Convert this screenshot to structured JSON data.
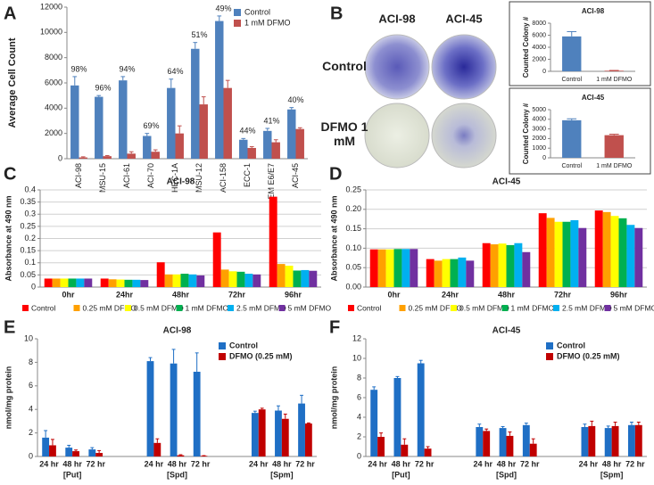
{
  "photo_panel": {
    "panel": "B",
    "columns": [
      "ACI-98",
      "ACI-45"
    ],
    "rows": [
      "Control",
      "DFMO 1 mM"
    ]
  },
  "chart_data": [
    {
      "type": "bar",
      "panel": "A",
      "ylabel": "Average Cell Count",
      "categories": [
        "ACI-98",
        "MSU-15",
        "ACI-61",
        "ACI-70",
        "HEC-1A",
        "MSU-12",
        "ACI-158",
        "ECC-1",
        "EM E6/E7",
        "ACI-45"
      ],
      "series": [
        {
          "name": "Control",
          "color": "#4f81bd",
          "values": [
            5800,
            4900,
            6200,
            1800,
            5600,
            8700,
            10900,
            1500,
            2200,
            3900
          ],
          "errors": [
            700,
            100,
            300,
            200,
            700,
            500,
            400,
            100,
            200,
            150
          ]
        },
        {
          "name": "1 mM DFMO",
          "color": "#c0504d",
          "values": [
            100,
            200,
            400,
            550,
            2000,
            4300,
            5600,
            850,
            1300,
            2350
          ],
          "errors": [
            50,
            50,
            150,
            150,
            600,
            600,
            600,
            100,
            200,
            100
          ]
        }
      ],
      "annotations": [
        "98%",
        "96%",
        "94%",
        "69%",
        "64%",
        "51%",
        "49%",
        "44%",
        "41%",
        "40%"
      ],
      "ylim": [
        0,
        12000
      ],
      "yticks": [
        0,
        2000,
        4000,
        6000,
        8000,
        10000,
        12000
      ],
      "legend": "upper right",
      "grid": false
    },
    {
      "type": "bar",
      "title": "ACI-98",
      "ylabel": "Counted Colony #",
      "categories": [
        "Control",
        "1 mM DFMO"
      ],
      "values": [
        5800,
        100
      ],
      "errors": [
        800,
        50
      ],
      "colors": [
        "#4f81bd",
        "#c0504d"
      ],
      "ylim": [
        0,
        8000
      ],
      "yticks": [
        0,
        2000,
        4000,
        6000,
        8000
      ],
      "grid": false
    },
    {
      "type": "bar",
      "title": "ACI-45",
      "ylabel": "Counted Colony #",
      "categories": [
        "Control",
        "1 mM DFMO"
      ],
      "values": [
        3900,
        2350
      ],
      "errors": [
        150,
        100
      ],
      "colors": [
        "#4f81bd",
        "#c0504d"
      ],
      "ylim": [
        0,
        5000
      ],
      "yticks": [
        0,
        1000,
        2000,
        3000,
        4000,
        5000
      ],
      "grid": false
    },
    {
      "type": "bar",
      "panel": "C",
      "title": "ACI-98",
      "ylabel": "Absorbance at 490 nm",
      "categories": [
        "0hr",
        "24hr",
        "48hr",
        "72hr",
        "96hr"
      ],
      "series": [
        {
          "name": "Control",
          "color": "#ff0000",
          "values": [
            0.035,
            0.035,
            0.102,
            0.225,
            0.372
          ]
        },
        {
          "name": "0.25 mM DFMO",
          "color": "#ffa000",
          "values": [
            0.035,
            0.032,
            0.052,
            0.072,
            0.095
          ]
        },
        {
          "name": "0.5 mM DFMO",
          "color": "#ffff00",
          "values": [
            0.035,
            0.031,
            0.052,
            0.065,
            0.088
          ]
        },
        {
          "name": "1 mM DFMO",
          "color": "#00b050",
          "values": [
            0.035,
            0.03,
            0.055,
            0.063,
            0.068
          ]
        },
        {
          "name": "2.5 mM DFMO",
          "color": "#00b0f0",
          "values": [
            0.035,
            0.03,
            0.052,
            0.055,
            0.07
          ]
        },
        {
          "name": "5 mM DFMO",
          "color": "#7030a0",
          "values": [
            0.035,
            0.029,
            0.048,
            0.052,
            0.067
          ]
        }
      ],
      "ylim": [
        0,
        0.4
      ],
      "yticks": [
        0,
        0.05,
        0.1,
        0.15,
        0.2,
        0.25,
        0.3,
        0.35,
        0.4
      ],
      "legend": "bottom",
      "grid": true
    },
    {
      "type": "bar",
      "panel": "D",
      "title": "ACI-45",
      "ylabel": "Absorbance at 490 nm",
      "categories": [
        "0hr",
        "24hr",
        "48hr",
        "72hr",
        "96hr"
      ],
      "series": [
        {
          "name": "Control",
          "color": "#ff0000",
          "values": [
            0.097,
            0.072,
            0.113,
            0.19,
            0.197
          ]
        },
        {
          "name": "0.25 mM DFMO",
          "color": "#ffa000",
          "values": [
            0.097,
            0.068,
            0.11,
            0.178,
            0.193
          ]
        },
        {
          "name": "0.5 mM DFMO",
          "color": "#ffff00",
          "values": [
            0.097,
            0.072,
            0.112,
            0.168,
            0.183
          ]
        },
        {
          "name": "1 mM DFMO",
          "color": "#00b050",
          "values": [
            0.098,
            0.072,
            0.108,
            0.168,
            0.177
          ]
        },
        {
          "name": "2.5 mM DFMO",
          "color": "#00b0f0",
          "values": [
            0.098,
            0.076,
            0.113,
            0.172,
            0.16
          ]
        },
        {
          "name": "5 mM DFMO",
          "color": "#7030a0",
          "values": [
            0.098,
            0.068,
            0.09,
            0.152,
            0.152
          ]
        }
      ],
      "ylim": [
        0,
        0.25
      ],
      "yticks": [
        {
          "value": 0,
          "label": "0.00"
        },
        {
          "value": 0.05,
          "label": "0.05"
        },
        {
          "value": 0.1,
          "label": "0.10"
        },
        {
          "value": 0.15,
          "label": "0.15"
        },
        {
          "value": 0.2,
          "label": "0.20"
        },
        {
          "value": 0.25,
          "label": "0.25"
        }
      ],
      "legend": "bottom",
      "grid": true
    },
    {
      "type": "bar",
      "panel": "E",
      "title": "ACI-98",
      "ylabel": "nmol/mg protein",
      "categories": [
        "24 hr",
        "48 hr",
        "72 hr",
        "24 hr",
        "48 hr",
        "72 hr",
        "24 hr",
        "48 hr",
        "72 hr"
      ],
      "category_groups": [
        "[Put]",
        "[Spd]",
        "[Spm]"
      ],
      "series": [
        {
          "name": "Control",
          "color": "#1f6fc5",
          "values": [
            1.6,
            0.75,
            0.6,
            8.1,
            7.9,
            7.2,
            3.7,
            3.9,
            4.5
          ],
          "errors": [
            0.6,
            0.2,
            0.15,
            0.3,
            1.2,
            1.6,
            0.15,
            0.4,
            0.7
          ]
        },
        {
          "name": "DFMO (0.25 mM)",
          "color": "#c00000",
          "values": [
            0.95,
            0.45,
            0.3,
            1.15,
            0.1,
            0.05,
            4.0,
            3.2,
            2.8
          ],
          "errors": [
            0.5,
            0.1,
            0.2,
            0.35,
            0.05,
            0.02,
            0.1,
            0.4,
            0.05
          ]
        }
      ],
      "ylim": [
        0,
        10
      ],
      "yticks": [
        0,
        2,
        4,
        6,
        8,
        10
      ],
      "legend": "upper right",
      "grid": false
    },
    {
      "type": "bar",
      "panel": "F",
      "title": "ACI-45",
      "ylabel": "nmol/mg protein",
      "categories": [
        "24 hr",
        "48 hr",
        "72 hr",
        "24 hr",
        "48 hr",
        "72 hr",
        "24 hr",
        "48 hr",
        "72 hr"
      ],
      "category_groups": [
        "[Put]",
        "[Spd]",
        "[Spm]"
      ],
      "series": [
        {
          "name": "Control",
          "color": "#1f6fc5",
          "values": [
            6.8,
            8.0,
            9.5,
            3.0,
            2.9,
            3.2,
            3.0,
            2.9,
            3.2
          ],
          "errors": [
            0.3,
            0.15,
            0.3,
            0.3,
            0.15,
            0.2,
            0.3,
            0.2,
            0.3
          ]
        },
        {
          "name": "DFMO (0.25 mM)",
          "color": "#c00000",
          "values": [
            2.0,
            1.2,
            0.8,
            2.6,
            2.1,
            1.3,
            3.1,
            3.1,
            3.2
          ],
          "errors": [
            0.4,
            0.6,
            0.2,
            0.2,
            0.4,
            0.5,
            0.5,
            0.4,
            0.3
          ]
        }
      ],
      "ylim": [
        0,
        12
      ],
      "yticks": [
        0,
        2,
        4,
        6,
        8,
        10,
        12
      ],
      "legend": "upper right",
      "grid": false
    }
  ]
}
